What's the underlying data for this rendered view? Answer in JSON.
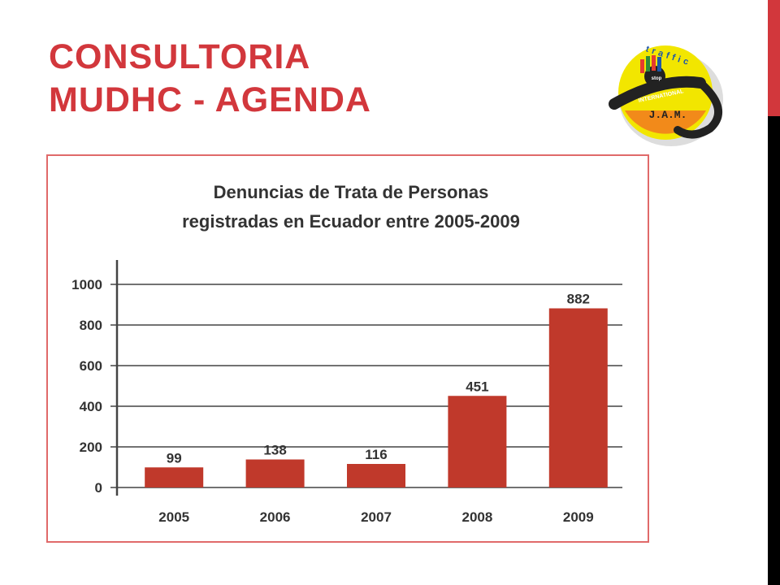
{
  "slide": {
    "title_line1": "CONSULTORIA",
    "title_line2": "MUDHC - AGENDA"
  },
  "logo": {
    "top_text": "traffic",
    "middle_text": "stop",
    "ring_text": "INTERNATIONAL",
    "bottom_text": "J.A.M."
  },
  "colors": {
    "accent": "#d2373c",
    "bar": "#c0392b",
    "frame_border": "#e06a6a",
    "strip": "#000000"
  },
  "chart_data": {
    "type": "bar",
    "title_line1": "Denuncias de Trata de Personas",
    "title_line2": "registradas en Ecuador entre 2005-2009",
    "categories": [
      "2005",
      "2006",
      "2007",
      "2008",
      "2009"
    ],
    "values": [
      99,
      138,
      116,
      451,
      882
    ],
    "data_labels": [
      "99",
      "138",
      "116",
      "451",
      "882"
    ],
    "yticks": [
      0,
      200,
      400,
      600,
      800,
      1000
    ],
    "ylim": [
      0,
      1000
    ],
    "xlabel": "",
    "ylabel": "",
    "grid": true,
    "legend": "none"
  }
}
